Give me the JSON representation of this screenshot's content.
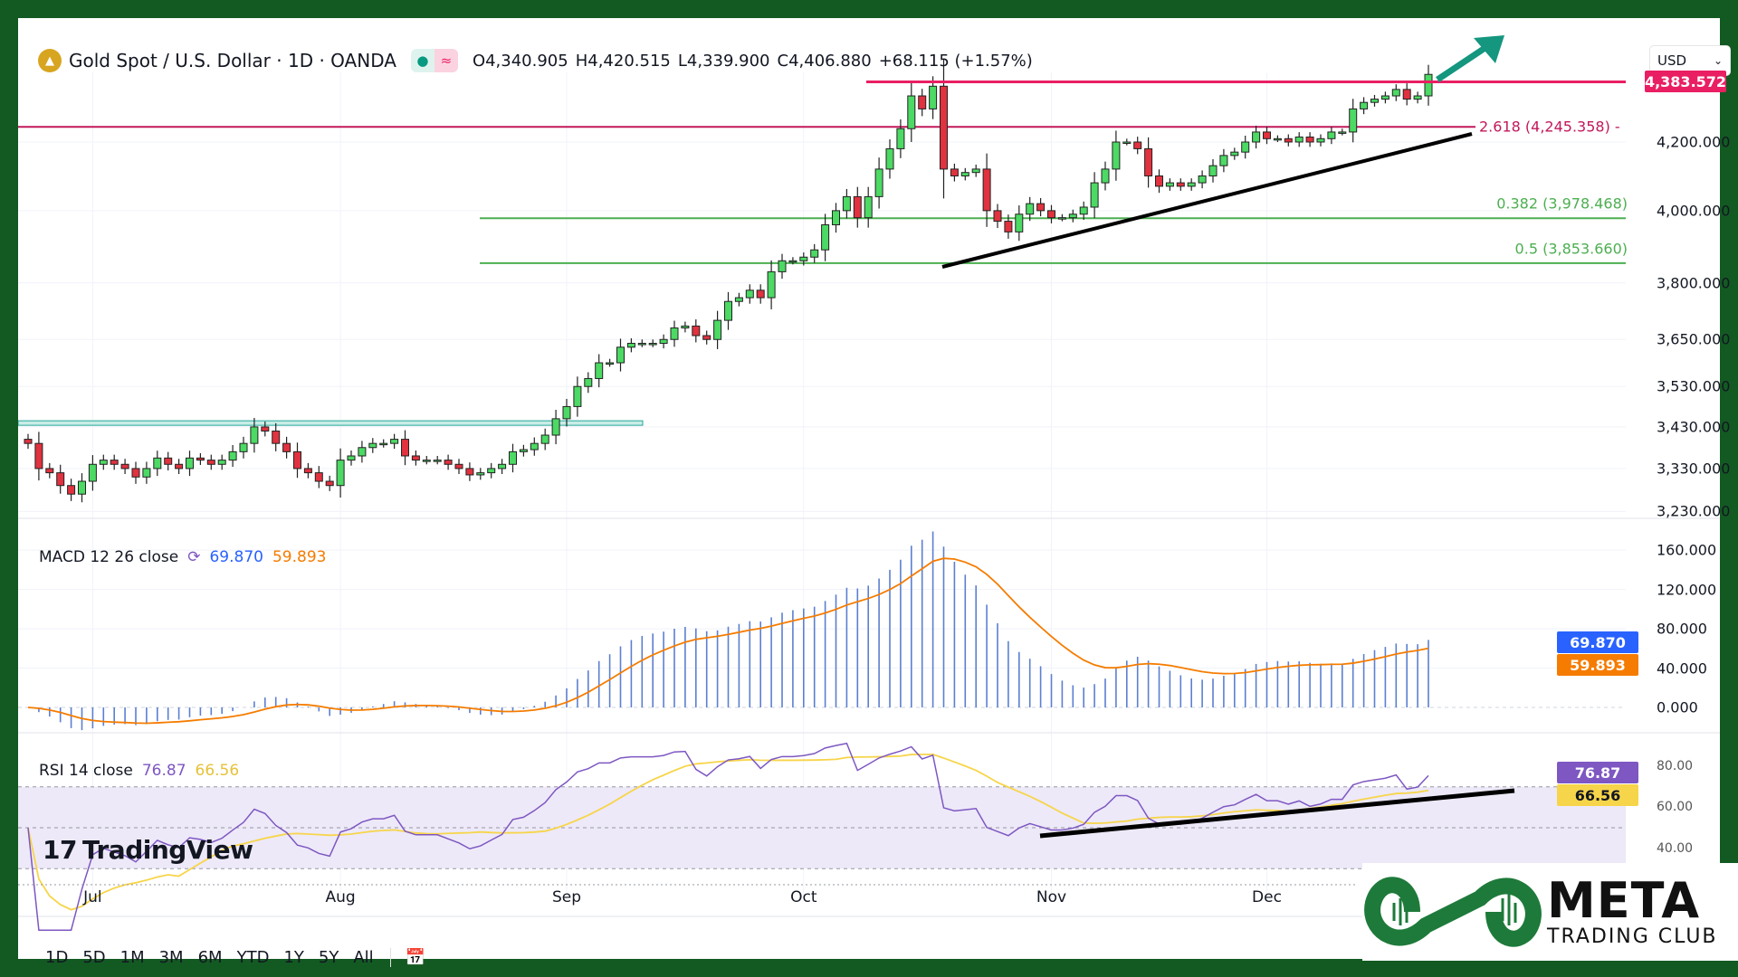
{
  "header": {
    "symbol": "Gold Spot / U.S. Dollar · 1D · OANDA",
    "open": "O4,340.905",
    "high": "H4,420.515",
    "low": "L4,339.900",
    "close": "C4,406.880",
    "change": "+68.115 (+1.57%)"
  },
  "currency_select": {
    "value": "USD"
  },
  "price_axis": [
    "4,200.000",
    "4,000.000",
    "3,800.000",
    "3,650.000",
    "3,530.000",
    "3,430.000",
    "3,330.000",
    "3,230.000"
  ],
  "price_axis_values": [
    4200,
    4000,
    3800,
    3650,
    3530,
    3430,
    3330,
    3230
  ],
  "price_tag": {
    "label": "4,383.572",
    "value": 4383.572,
    "color": "#e91e63"
  },
  "fib": [
    {
      "label": "2.618 (4,245.358) -",
      "value": 4245.358,
      "color": "#c2185b"
    },
    {
      "label": "0.382 (3,978.468)",
      "value": 3978.468,
      "color": "#4caf50"
    },
    {
      "label": "0.5 (3,853.660)",
      "value": 3853.66,
      "color": "#4caf50"
    }
  ],
  "macd": {
    "legend": "MACD 12 26 close",
    "macd_value": "69.870",
    "signal_value": "59.893",
    "axis": [
      "160.000",
      "120.000",
      "80.000",
      "40.000",
      "0.000"
    ],
    "axis_values": [
      160,
      120,
      80,
      40,
      0
    ],
    "colors": {
      "macd": "#2962ff",
      "signal": "#f57c00",
      "hist": "#5b7fd1"
    }
  },
  "rsi": {
    "legend": "RSI 14 close",
    "rsi_value": "76.87",
    "ma_value": "66.56",
    "axis": [
      "80.00",
      "60.00",
      "40.00"
    ],
    "axis_values": [
      80,
      60,
      40
    ],
    "colors": {
      "rsi": "#7e57c2",
      "ma": "#f7d54a"
    }
  },
  "time_axis": [
    {
      "label": "Jul",
      "index": 6
    },
    {
      "label": "Aug",
      "index": 29
    },
    {
      "label": "Sep",
      "index": 50
    },
    {
      "label": "Oct",
      "index": 72
    },
    {
      "label": "Nov",
      "index": 95
    },
    {
      "label": "Dec",
      "index": 115
    }
  ],
  "toolbar": [
    "1D",
    "5D",
    "1M",
    "3M",
    "6M",
    "YTD",
    "1Y",
    "5Y",
    "All"
  ],
  "watermark": "TradingView",
  "logo": {
    "big": "META",
    "small": "TRADING CLUB"
  },
  "chart_data": {
    "type": "candlestick",
    "title": "Gold Spot / U.S. Dollar · 1D · OANDA",
    "ylim": [
      3230,
      4420
    ],
    "y_scale": "log",
    "closes": [
      3390,
      3330,
      3320,
      3290,
      3270,
      3300,
      3340,
      3350,
      3340,
      3330,
      3310,
      3330,
      3355,
      3340,
      3330,
      3355,
      3350,
      3340,
      3350,
      3370,
      3390,
      3430,
      3420,
      3390,
      3370,
      3330,
      3320,
      3300,
      3290,
      3350,
      3360,
      3380,
      3390,
      3390,
      3400,
      3360,
      3350,
      3350,
      3350,
      3340,
      3330,
      3315,
      3320,
      3330,
      3340,
      3370,
      3375,
      3390,
      3410,
      3450,
      3480,
      3530,
      3550,
      3590,
      3590,
      3630,
      3640,
      3640,
      3640,
      3650,
      3680,
      3685,
      3660,
      3650,
      3700,
      3750,
      3760,
      3780,
      3760,
      3830,
      3860,
      3860,
      3870,
      3890,
      3960,
      4000,
      4040,
      3980,
      4040,
      4120,
      4180,
      4240,
      4340,
      4300,
      4370,
      4120,
      4100,
      4110,
      4120,
      4000,
      3970,
      3940,
      3990,
      4020,
      4000,
      3980,
      3980,
      3990,
      4010,
      4080,
      4120,
      4200,
      4200,
      4180,
      4100,
      4070,
      4080,
      4070,
      4080,
      4100,
      4130,
      4160,
      4170,
      4200,
      4230,
      4210,
      4210,
      4200,
      4215,
      4200,
      4210,
      4230,
      4230,
      4300,
      4320,
      4330,
      4340,
      4360,
      4330,
      4340,
      4406.88
    ]
  }
}
